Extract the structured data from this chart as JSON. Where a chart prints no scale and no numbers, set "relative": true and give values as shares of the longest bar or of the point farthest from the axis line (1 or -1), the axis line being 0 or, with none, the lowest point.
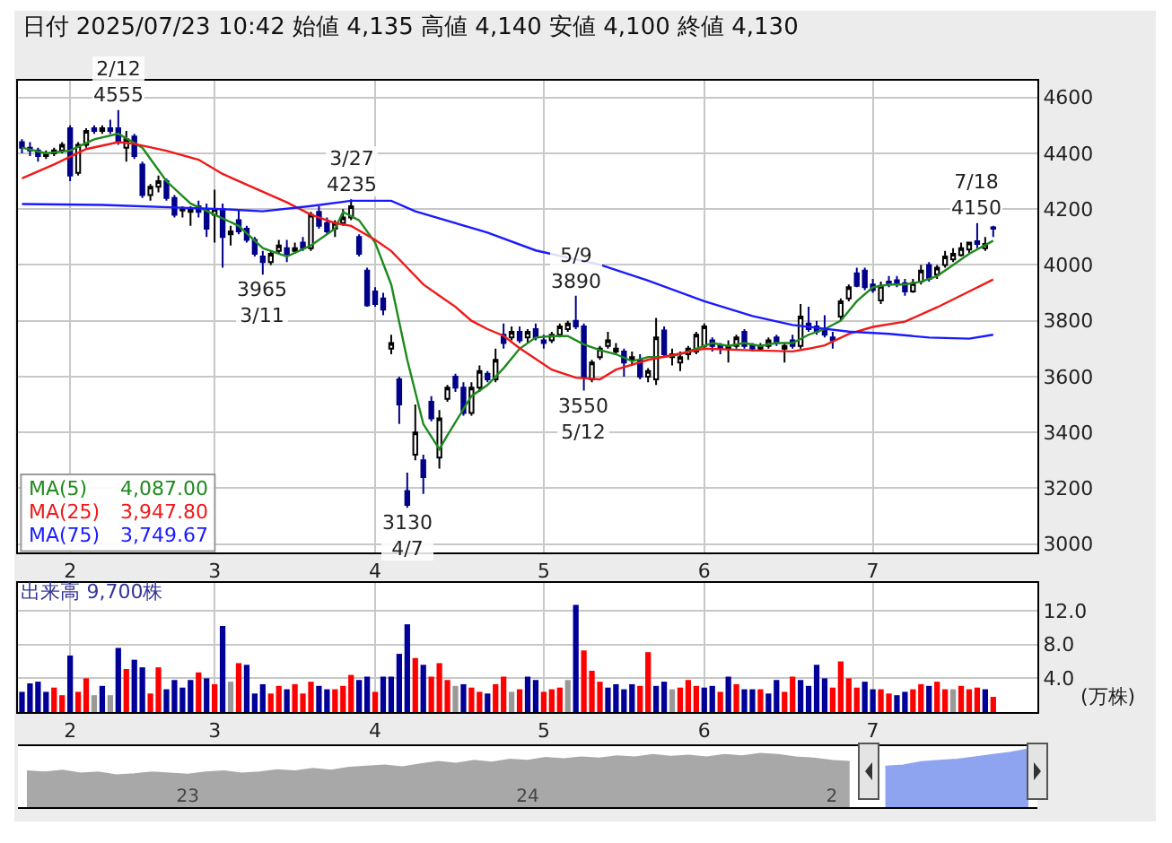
{
  "chart_data": [
    {
      "type": "candlestick",
      "title": "日付 2025/07/23 10:42 始値 4,135 高値 4,140 安値 4,100 終値 4,130",
      "categories": [
        null,
        null,
        null,
        null,
        null,
        null,
        "2",
        null,
        null,
        null,
        null,
        null,
        null,
        null,
        null,
        null,
        null,
        null,
        null,
        null,
        null,
        null,
        null,
        null,
        "3",
        null,
        null,
        null,
        null,
        null,
        null,
        null,
        null,
        null,
        null,
        null,
        null,
        null,
        null,
        null,
        null,
        null,
        null,
        null,
        "4",
        null,
        null,
        null,
        null,
        null,
        null,
        null,
        null,
        null,
        null,
        null,
        null,
        null,
        null,
        null,
        null,
        null,
        null,
        null,
        null,
        "5",
        null,
        null,
        null,
        null,
        null,
        null,
        null,
        null,
        null,
        null,
        null,
        null,
        null,
        null,
        null,
        null,
        null,
        null,
        null,
        "6",
        null,
        null,
        null,
        null,
        null,
        null,
        null,
        null,
        null,
        null,
        null,
        null,
        null,
        null,
        null,
        null,
        null,
        null,
        null,
        null,
        "7",
        null,
        null,
        null,
        null,
        null,
        null,
        null,
        null,
        null,
        null,
        null,
        null,
        null,
        null,
        null,
        null,
        null,
        null,
        null,
        null
      ],
      "ylim": [
        2970,
        4660
      ],
      "yticks": [
        3000,
        3200,
        3400,
        3600,
        3800,
        4000,
        4200,
        4400,
        4600
      ],
      "ohlc": [
        [
          4440,
          4450,
          4400,
          4420
        ],
        [
          4420,
          4440,
          4390,
          4410
        ],
        [
          4410,
          4420,
          4370,
          4390
        ],
        [
          4390,
          4410,
          4380,
          4400
        ],
        [
          4400,
          4420,
          4390,
          4410
        ],
        [
          4410,
          4440,
          4400,
          4430
        ],
        [
          4490,
          4500,
          4300,
          4320
        ],
        [
          4330,
          4440,
          4320,
          4430
        ],
        [
          4430,
          4490,
          4420,
          4480
        ],
        [
          4490,
          4500,
          4470,
          4480
        ],
        [
          4480,
          4500,
          4470,
          4490
        ],
        [
          4490,
          4520,
          4470,
          4480
        ],
        [
          4490,
          4555,
          4430,
          4440
        ],
        [
          4420,
          4480,
          4370,
          4450
        ],
        [
          4460,
          4470,
          4380,
          4390
        ],
        [
          4360,
          4370,
          4240,
          4250
        ],
        [
          4250,
          4290,
          4230,
          4280
        ],
        [
          4280,
          4320,
          4260,
          4300
        ],
        [
          4300,
          4310,
          4230,
          4240
        ],
        [
          4240,
          4250,
          4170,
          4180
        ],
        [
          4195,
          4210,
          4170,
          4200
        ],
        [
          4190,
          4210,
          4140,
          4200
        ],
        [
          4210,
          4230,
          4170,
          4190
        ],
        [
          4200,
          4220,
          4100,
          4130
        ],
        [
          4180,
          4270,
          4080,
          4200
        ],
        [
          4200,
          4220,
          3990,
          4100
        ],
        [
          4110,
          4140,
          4070,
          4120
        ],
        [
          4160,
          4200,
          4110,
          4120
        ],
        [
          4130,
          4140,
          4080,
          4090
        ],
        [
          4090,
          4100,
          4030,
          4040
        ],
        [
          4030,
          4050,
          3965,
          4010
        ],
        [
          4010,
          4050,
          4000,
          4040
        ],
        [
          4050,
          4090,
          4040,
          4070
        ],
        [
          4060,
          4090,
          4010,
          4040
        ],
        [
          4050,
          4080,
          4040,
          4060
        ],
        [
          4080,
          4100,
          4050,
          4060
        ],
        [
          4060,
          4190,
          4050,
          4180
        ],
        [
          4190,
          4210,
          4130,
          4140
        ],
        [
          4150,
          4170,
          4110,
          4120
        ],
        [
          4130,
          4160,
          4100,
          4150
        ],
        [
          4150,
          4200,
          4140,
          4170
        ],
        [
          4170,
          4235,
          4160,
          4210
        ],
        [
          4100,
          4110,
          4030,
          4040
        ],
        [
          3980,
          3990,
          3850,
          3855
        ],
        [
          3905,
          3920,
          3850,
          3860
        ],
        [
          3880,
          3900,
          3820,
          3840
        ],
        [
          3700,
          3750,
          3680,
          3720
        ],
        [
          3590,
          3600,
          3430,
          3500
        ],
        [
          3190,
          3256,
          3130,
          3140
        ],
        [
          3320,
          3500,
          3300,
          3400
        ],
        [
          3300,
          3320,
          3180,
          3240
        ],
        [
          3510,
          3530,
          3440,
          3450
        ],
        [
          3310,
          3480,
          3270,
          3450
        ],
        [
          3520,
          3570,
          3510,
          3560
        ],
        [
          3600,
          3610,
          3545,
          3560
        ],
        [
          3560,
          3580,
          3460,
          3470
        ],
        [
          3470,
          3580,
          3460,
          3560
        ],
        [
          3560,
          3640,
          3545,
          3620
        ],
        [
          3610,
          3620,
          3580,
          3590
        ],
        [
          3590,
          3700,
          3580,
          3660
        ],
        [
          3750,
          3790,
          3700,
          3720
        ],
        [
          3740,
          3780,
          3730,
          3760
        ],
        [
          3760,
          3780,
          3720,
          3730
        ],
        [
          3740,
          3770,
          3720,
          3760
        ],
        [
          3770,
          3790,
          3730,
          3740
        ],
        [
          3730,
          3750,
          3700,
          3720
        ],
        [
          3730,
          3760,
          3720,
          3750
        ],
        [
          3750,
          3790,
          3740,
          3780
        ],
        [
          3770,
          3800,
          3760,
          3790
        ],
        [
          3800,
          3890,
          3770,
          3780
        ],
        [
          3780,
          3790,
          3550,
          3600
        ],
        [
          3590,
          3660,
          3580,
          3650
        ],
        [
          3670,
          3710,
          3660,
          3700
        ],
        [
          3710,
          3760,
          3700,
          3730
        ],
        [
          3690,
          3720,
          3680,
          3700
        ],
        [
          3690,
          3700,
          3600,
          3650
        ],
        [
          3660,
          3690,
          3640,
          3670
        ],
        [
          3660,
          3680,
          3590,
          3600
        ],
        [
          3600,
          3630,
          3580,
          3620
        ],
        [
          3590,
          3810,
          3570,
          3740
        ],
        [
          3765,
          3780,
          3670,
          3680
        ],
        [
          3670,
          3700,
          3640,
          3680
        ],
        [
          3650,
          3690,
          3620,
          3670
        ],
        [
          3680,
          3710,
          3660,
          3700
        ],
        [
          3690,
          3760,
          3680,
          3750
        ],
        [
          3710,
          3790,
          3700,
          3780
        ],
        [
          3730,
          3740,
          3690,
          3710
        ],
        [
          3710,
          3720,
          3680,
          3700
        ],
        [
          3700,
          3730,
          3650,
          3710
        ],
        [
          3710,
          3750,
          3700,
          3740
        ],
        [
          3760,
          3770,
          3700,
          3710
        ],
        [
          3710,
          3720,
          3690,
          3700
        ],
        [
          3700,
          3720,
          3690,
          3710
        ],
        [
          3710,
          3740,
          3700,
          3730
        ],
        [
          3740,
          3750,
          3710,
          3720
        ],
        [
          3700,
          3720,
          3650,
          3710
        ],
        [
          3730,
          3750,
          3700,
          3710
        ],
        [
          3710,
          3860,
          3700,
          3815
        ],
        [
          3790,
          3850,
          3760,
          3770
        ],
        [
          3780,
          3800,
          3750,
          3760
        ],
        [
          3770,
          3820,
          3740,
          3750
        ],
        [
          3740,
          3760,
          3700,
          3730
        ],
        [
          3815,
          3880,
          3800,
          3870
        ],
        [
          3880,
          3930,
          3870,
          3920
        ],
        [
          3970,
          3990,
          3920,
          3925
        ],
        [
          3980,
          3990,
          3910,
          3920
        ],
        [
          3930,
          3950,
          3900,
          3910
        ],
        [
          3873,
          3940,
          3860,
          3925
        ],
        [
          3940,
          3960,
          3920,
          3930
        ],
        [
          3945,
          3960,
          3920,
          3935
        ],
        [
          3935,
          3950,
          3890,
          3905
        ],
        [
          3905,
          3950,
          3900,
          3935
        ],
        [
          3940,
          4000,
          3930,
          3980
        ],
        [
          4000,
          4010,
          3940,
          3950
        ],
        [
          3965,
          4000,
          3950,
          3990
        ],
        [
          4000,
          4050,
          3990,
          4030
        ],
        [
          4020,
          4060,
          4010,
          4040
        ],
        [
          4035,
          4080,
          4030,
          4060
        ],
        [
          4055,
          4080,
          4040,
          4080
        ],
        [
          4085,
          4150,
          4060,
          4075
        ],
        [
          4060,
          4100,
          4050,
          4075
        ],
        [
          4135,
          4140,
          4100,
          4130
        ],
        null,
        null,
        null,
        null,
        null
      ],
      "series": [
        {
          "type": "line",
          "name": "MA(5)",
          "color": "#1e8a1e",
          "values": [
            4420,
            null,
            null,
            4400,
            null,
            null,
            4410,
            null,
            null,
            4450,
            null,
            null,
            4470,
            null,
            null,
            4420,
            null,
            null,
            4300,
            null,
            null,
            4220,
            null,
            null,
            4180,
            null,
            null,
            4140,
            null,
            null,
            4060,
            null,
            null,
            4030,
            null,
            null,
            4070,
            null,
            null,
            4130,
            4190,
            null,
            4160,
            null,
            4080,
            null,
            3930,
            null,
            3660,
            null,
            3430,
            null,
            3340,
            3390,
            null,
            null,
            3530,
            null,
            3570,
            null,
            3630,
            null,
            3700,
            null,
            3740,
            null,
            3745,
            null,
            3745,
            null,
            3715,
            null,
            3695,
            null,
            3680,
            null,
            3655,
            null,
            3670,
            null,
            3670,
            null,
            3680,
            null,
            3700,
            null,
            3720,
            null,
            3710,
            null,
            3720,
            null,
            3710,
            null,
            3720,
            null,
            3720,
            null,
            3750,
            null,
            3770,
            null,
            3800,
            null,
            3870,
            null,
            3920,
            null,
            3930,
            null,
            3930,
            null,
            3940,
            null,
            3960,
            null,
            4000,
            null,
            4040,
            null,
            null,
            4087,
            null,
            null,
            null,
            null,
            null
          ]
        },
        {
          "type": "line",
          "name": "MA(25)",
          "color": "#f01818",
          "values": [
            4310,
            null,
            null,
            null,
            4360,
            null,
            null,
            null,
            4415,
            null,
            null,
            null,
            4440,
            null,
            4434,
            null,
            null,
            null,
            4409,
            null,
            null,
            null,
            4377,
            null,
            null,
            4326,
            null,
            null,
            null,
            4275,
            null,
            null,
            null,
            4224,
            null,
            null,
            4180,
            null,
            null,
            4150,
            null,
            4140,
            null,
            null,
            4090,
            null,
            4050,
            null,
            3990,
            null,
            3930,
            null,
            3890,
            null,
            3850,
            null,
            3800,
            null,
            3770,
            null,
            3746,
            null,
            3702,
            null,
            null,
            null,
            3625,
            null,
            null,
            3596,
            null,
            null,
            3590,
            null,
            3625,
            null,
            null,
            null,
            3660,
            null,
            null,
            null,
            null,
            null,
            null,
            3700,
            null,
            null,
            null,
            null,
            3695,
            null,
            null,
            null,
            null,
            null,
            3690,
            null,
            3700,
            null,
            3712,
            null,
            null,
            3753,
            null,
            null,
            3778,
            null,
            null,
            null,
            3797,
            null,
            null,
            null,
            3848,
            null,
            null,
            null,
            3905,
            null,
            null,
            3948,
            null,
            null,
            null,
            null,
            null
          ]
        },
        {
          "type": "line",
          "name": "MA(75)",
          "color": "#1a1aff",
          "values": [
            4218,
            null,
            null,
            null,
            null,
            null,
            null,
            null,
            null,
            null,
            4215,
            null,
            null,
            null,
            null,
            null,
            null,
            null,
            null,
            null,
            4205,
            null,
            null,
            null,
            null,
            4200,
            null,
            null,
            null,
            null,
            4192,
            null,
            null,
            null,
            null,
            null,
            4211,
            null,
            null,
            null,
            null,
            4230,
            null,
            null,
            null,
            null,
            4230,
            null,
            null,
            4192,
            null,
            null,
            null,
            null,
            null,
            null,
            null,
            null,
            4116,
            null,
            null,
            null,
            null,
            null,
            4052,
            null,
            null,
            null,
            null,
            null,
            null,
            null,
            4001,
            null,
            null,
            null,
            null,
            null,
            3944,
            null,
            null,
            null,
            null,
            null,
            null,
            3870,
            null,
            null,
            null,
            null,
            null,
            3817,
            null,
            null,
            null,
            null,
            3785,
            null,
            null,
            null,
            null,
            null,
            null,
            3761,
            null,
            null,
            null,
            null,
            3753,
            null,
            null,
            null,
            null,
            3740,
            null,
            null,
            null,
            null,
            3736,
            null,
            null,
            3750,
            null,
            null,
            null,
            null,
            null
          ]
        }
      ],
      "annotations": [
        {
          "text": "2/12\n4555",
          "y": 4555
        },
        {
          "text": "3965\n3/11",
          "y": 3965
        },
        {
          "text": "3/27\n4235",
          "y": 4235
        },
        {
          "text": "3130\n4/7",
          "y": 3130
        },
        {
          "text": "5/9\n3890",
          "y": 3890
        },
        {
          "text": "3550\n5/12",
          "y": 3550
        },
        {
          "text": "7/18\n4150",
          "y": 4150
        },
        "4,087.00",
        "3,947.80",
        "3,749.67"
      ],
      "grid": true,
      "legend": "bottom left"
    },
    {
      "type": "bar",
      "title": "出来高 9,700株",
      "ylabel": "(万株)",
      "categories": [
        null,
        null,
        null,
        null,
        null,
        null,
        "2",
        null,
        null,
        null,
        null,
        null,
        null,
        null,
        null,
        null,
        null,
        null,
        null,
        null,
        null,
        null,
        null,
        null,
        "3",
        null,
        null,
        null,
        null,
        null,
        null,
        null,
        null,
        null,
        null,
        null,
        null,
        null,
        null,
        null,
        null,
        null,
        null,
        null,
        "4",
        null,
        null,
        null,
        null,
        null,
        null,
        null,
        null,
        null,
        null,
        null,
        null,
        null,
        null,
        null,
        null,
        null,
        null,
        null,
        null,
        "5",
        null,
        null,
        null,
        null,
        null,
        null,
        null,
        null,
        null,
        null,
        null,
        null,
        null,
        null,
        null,
        null,
        null,
        null,
        null,
        "6",
        null,
        null,
        null,
        null,
        null,
        null,
        null,
        null,
        null,
        null,
        null,
        null,
        null,
        null,
        null,
        null,
        null,
        null,
        null,
        null,
        "7",
        null,
        null,
        null,
        null,
        null,
        null,
        null,
        null,
        null,
        null,
        null,
        null,
        null,
        null,
        null,
        null,
        null,
        null,
        null,
        null
      ],
      "values": [
        2.4,
        3.4,
        3.6,
        2.4,
        2.9,
        2.0,
        6.7,
        2.4,
        4.0,
        2.0,
        3.1,
        2.0,
        7.6,
        5.1,
        6.2,
        5.3,
        2.2,
        5.3,
        2.7,
        3.8,
        2.9,
        3.8,
        4.7,
        4.0,
        3.3,
        10.2,
        3.6,
        5.8,
        5.6,
        2.2,
        3.3,
        2.2,
        3.1,
        2.7,
        3.3,
        2.2,
        3.6,
        3.1,
        2.7,
        2.7,
        3.1,
        4.4,
        3.8,
        4.2,
        2.4,
        4.2,
        4.2,
        6.9,
        10.4,
        6.4,
        5.6,
        4.2,
        5.8,
        3.8,
        3.1,
        3.3,
        2.9,
        2.4,
        2.2,
        3.3,
        4.2,
        2.4,
        2.7,
        4.2,
        3.8,
        2.4,
        2.7,
        2.9,
        3.8,
        12.7,
        7.3,
        4.9,
        3.6,
        2.9,
        3.3,
        2.7,
        3.3,
        3.1,
        7.1,
        3.1,
        3.6,
        2.7,
        2.9,
        3.8,
        3.1,
        2.9,
        3.1,
        2.4,
        4.2,
        3.3,
        2.7,
        2.7,
        2.7,
        2.2,
        3.8,
        2.4,
        4.2,
        3.8,
        3.1,
        5.6,
        4.0,
        2.9,
        6.0,
        4.0,
        2.9,
        3.6,
        2.7,
        2.7,
        2.2,
        2.0,
        2.4,
        2.7,
        3.3,
        3.1,
        3.6,
        2.7,
        2.7,
        3.1,
        2.7,
        2.9,
        2.7,
        1.8,
        null,
        null,
        null,
        null,
        null
      ],
      "colors": [
        "#000099",
        "#000099",
        "#000099",
        "#000099",
        "#ff0000",
        "#ff0000",
        "#000099",
        "#ff0000",
        "#ff0000",
        "#999999",
        "#000099",
        "#999999",
        "#000099",
        "#ff0000",
        "#000099",
        "#000099",
        "#ff0000",
        "#ff0000",
        "#000099",
        "#000099",
        "#000099",
        "#000099",
        "#ff0000",
        "#000099",
        "#ff0000",
        "#000099",
        "#999999",
        "#ff0000",
        "#000099",
        "#000099",
        "#000099",
        "#ff0000",
        "#ff0000",
        "#000099",
        "#ff0000",
        "#ff0000",
        "#ff0000",
        "#000099",
        "#000099",
        "#ff0000",
        "#ff0000",
        "#ff0000",
        "#000099",
        "#000099",
        "#ff0000",
        "#000099",
        "#000099",
        "#000099",
        "#000099",
        "#ff0000",
        "#000099",
        "#ff0000",
        "#ff0000",
        "#ff0000",
        "#999999",
        "#000099",
        "#ff0000",
        "#ff0000",
        "#000099",
        "#ff0000",
        "#ff0000",
        "#999999",
        "#ff0000",
        "#000099",
        "#000099",
        "#ff0000",
        "#ff0000",
        "#ff0000",
        "#999999",
        "#000099",
        "#ff0000",
        "#ff0000",
        "#ff0000",
        "#000099",
        "#000099",
        "#000099",
        "#000099",
        "#ff0000",
        "#ff0000",
        "#000099",
        "#000099",
        "#999999",
        "#ff0000",
        "#ff0000",
        "#ff0000",
        "#000099",
        "#000099",
        "#ff0000",
        "#000099",
        "#ff0000",
        "#000099",
        "#000099",
        "#ff0000",
        "#000099",
        "#000099",
        "#ff0000",
        "#ff0000",
        "#000099",
        "#000099",
        "#000099",
        "#000099",
        "#ff0000",
        "#ff0000",
        "#ff0000",
        "#ff0000",
        "#000099",
        "#000099",
        "#ff0000",
        "#ff0000",
        "#000099",
        "#000099",
        "#ff0000",
        "#ff0000",
        "#000099",
        "#ff0000",
        "#ff0000",
        "#999999",
        "#ff0000",
        "#ff0000",
        "#ff0000",
        "#000099",
        "#ff0000",
        null,
        null,
        null,
        null,
        null
      ],
      "ylim": [
        0,
        15.3
      ],
      "yticks": [
        {
          "value": 4,
          "label": "4.0"
        },
        {
          "value": 8,
          "label": "8.0"
        },
        {
          "value": 12,
          "label": "12.0"
        }
      ],
      "grid": true
    },
    {
      "type": "area",
      "relative": true,
      "categories": [
        null,
        null,
        null,
        null,
        null,
        null,
        null,
        null,
        null,
        "23",
        null,
        null,
        null,
        null,
        null,
        null,
        null,
        null,
        null,
        null,
        null,
        null,
        null,
        null,
        null,
        null,
        null,
        null,
        "24",
        null,
        null,
        null,
        null,
        null,
        null,
        null,
        null,
        null,
        null,
        null,
        null,
        null,
        null,
        null,
        null,
        "2",
        null,
        null,
        null,
        null,
        null,
        null,
        null,
        null,
        null,
        null,
        null
      ],
      "series": [
        {
          "color": "#a8a8a8",
          "values": [
            0.62,
            0.6,
            0.63,
            0.58,
            0.6,
            0.55,
            0.57,
            0.6,
            0.58,
            0.56,
            0.6,
            0.62,
            0.58,
            0.6,
            0.64,
            0.62,
            0.66,
            0.63,
            0.68,
            0.7,
            0.72,
            0.69,
            0.74,
            0.78,
            0.75,
            0.8,
            0.77,
            0.82,
            0.8,
            0.85,
            0.83,
            0.86,
            0.84,
            0.88,
            0.86,
            0.9,
            0.87,
            0.89,
            0.86,
            0.9,
            0.88,
            0.92,
            0.9,
            0.86,
            0.84,
            0.8,
            0.78,
            null,
            null,
            null,
            null,
            null,
            null,
            null,
            null,
            null,
            null
          ]
        },
        {
          "color": "#8fa4f0",
          "values": [
            null,
            null,
            null,
            null,
            null,
            null,
            null,
            null,
            null,
            null,
            null,
            null,
            null,
            null,
            null,
            null,
            null,
            null,
            null,
            null,
            null,
            null,
            null,
            null,
            null,
            null,
            null,
            null,
            null,
            null,
            null,
            null,
            null,
            null,
            null,
            null,
            null,
            null,
            null,
            null,
            null,
            null,
            null,
            null,
            null,
            null,
            null,
            null,
            0.7,
            0.72,
            0.78,
            0.8,
            0.82,
            0.86,
            0.9,
            0.94,
            1
          ]
        }
      ]
    }
  ]
}
